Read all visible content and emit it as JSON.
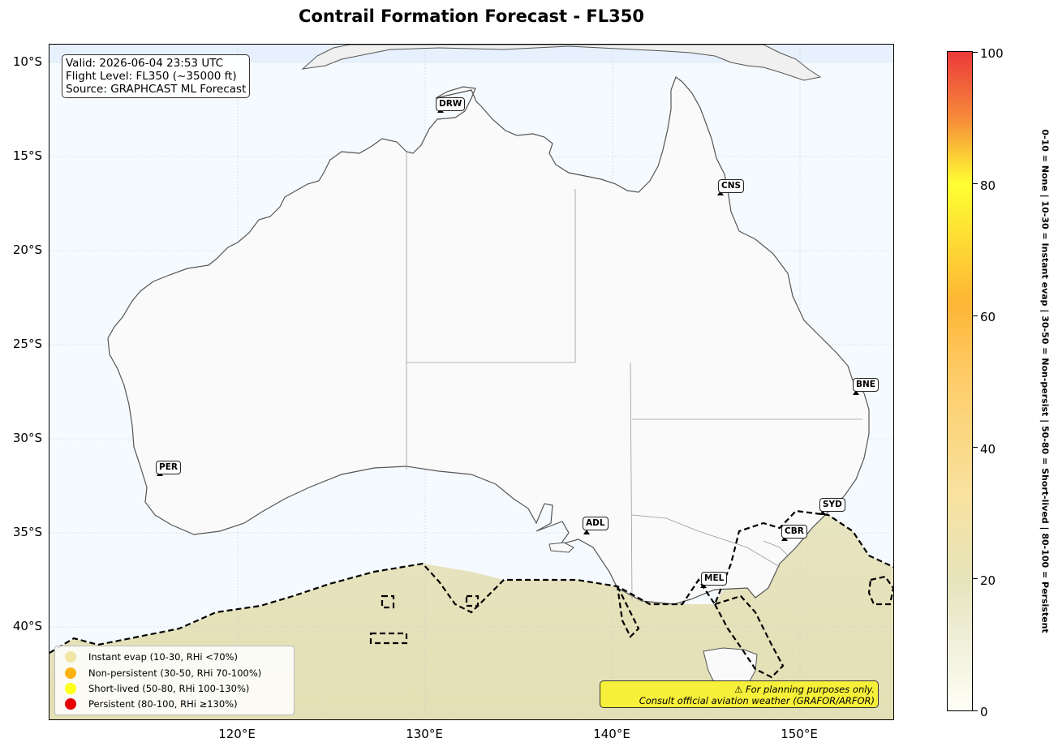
{
  "title": "Contrail Formation Forecast - FL350",
  "info": {
    "valid": "Valid: 2026-06-04 23:53 UTC",
    "flight_level": "Flight Level: FL350 (~35000 ft)",
    "source": "Source: GRAPHCAST ML Forecast"
  },
  "axes": {
    "lat_labels": [
      "10°S",
      "15°S",
      "20°S",
      "25°S",
      "30°S",
      "35°S",
      "40°S"
    ],
    "lon_labels": [
      "120°E",
      "130°E",
      "140°E",
      "150°E"
    ]
  },
  "cities": [
    {
      "code": "DRW"
    },
    {
      "code": "CNS"
    },
    {
      "code": "BNE"
    },
    {
      "code": "PER"
    },
    {
      "code": "SYD"
    },
    {
      "code": "ADL"
    },
    {
      "code": "CBR"
    },
    {
      "code": "MEL"
    }
  ],
  "legend": [
    {
      "label": "Instant evap (10-30, RHi <70%)",
      "color": "#f2e6a6"
    },
    {
      "label": "Non-persistent (30-50, RHi 70-100%)",
      "color": "#fdb214"
    },
    {
      "label": "Short-lived (50-80, RHi 100-130%)",
      "color": "#ffff1a"
    },
    {
      "label": "Persistent (80-100, RHi ≥130%)",
      "color": "#e60000"
    }
  ],
  "disclaimer": {
    "line1": "⚠ For planning purposes only.",
    "line2": "Consult official aviation weather (GRAFOR/ARFOR)"
  },
  "colorbar": {
    "ticks": [
      "0",
      "20",
      "40",
      "60",
      "80",
      "100"
    ],
    "description": "0-10 = None  |  10-30 = Instant evap  |  30-50 = Non-persist  |  50-80 = Short-lived  |  80-100 = Persistent"
  },
  "colors": {
    "ocean": "#f5faff",
    "land": "#fafafa",
    "contrail_zone": "#e6e3bf"
  }
}
